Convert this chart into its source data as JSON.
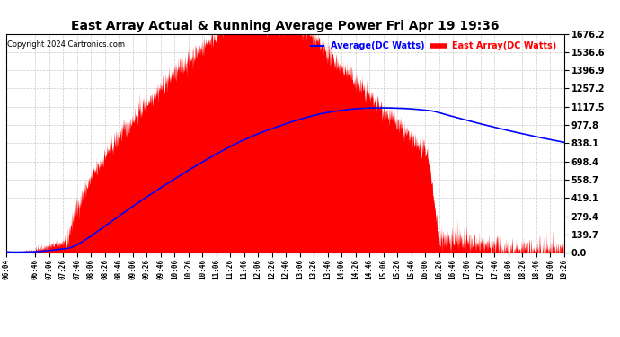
{
  "title": "East Array Actual & Running Average Power Fri Apr 19 19:36",
  "copyright": "Copyright 2024 Cartronics.com",
  "legend_avg": "Average(DC Watts)",
  "legend_east": "East Array(DC Watts)",
  "bg_color": "#ffffff",
  "plot_bg_color": "#ffffff",
  "grid_color": "#bbbbbb",
  "fill_color": "#ff0000",
  "avg_line_color": "#0000ff",
  "east_line_color": "#ff0000",
  "title_color": "#000000",
  "copyright_color": "#000000",
  "ymax": 1676.2,
  "yticks": [
    0.0,
    139.7,
    279.4,
    419.1,
    558.7,
    698.4,
    838.1,
    977.8,
    1117.5,
    1257.2,
    1396.9,
    1536.6,
    1676.2
  ],
  "time_start_minutes": 364,
  "time_end_minutes": 1166,
  "x_tick_labels": [
    "06:04",
    "06:46",
    "07:06",
    "07:26",
    "07:46",
    "08:06",
    "08:26",
    "08:46",
    "09:06",
    "09:26",
    "09:46",
    "10:06",
    "10:26",
    "10:46",
    "11:06",
    "11:26",
    "11:46",
    "12:06",
    "12:26",
    "12:46",
    "13:06",
    "13:26",
    "13:46",
    "14:06",
    "14:26",
    "14:46",
    "15:06",
    "15:26",
    "15:46",
    "16:06",
    "16:26",
    "16:46",
    "17:06",
    "17:26",
    "17:46",
    "18:06",
    "18:26",
    "18:46",
    "19:06",
    "19:26"
  ],
  "x_tick_minutes": [
    364,
    406,
    426,
    446,
    466,
    486,
    506,
    526,
    546,
    566,
    586,
    606,
    626,
    646,
    666,
    686,
    706,
    726,
    746,
    766,
    786,
    806,
    826,
    846,
    866,
    886,
    906,
    926,
    946,
    966,
    986,
    1006,
    1026,
    1046,
    1066,
    1086,
    1106,
    1126,
    1146,
    1166
  ],
  "peak_start": 460,
  "peak_end": 790,
  "cliff_time": 970,
  "peak_value": 1676.2,
  "avg_peak_value": 1117.5,
  "avg_peak_time": 920,
  "avg_end_value": 838.1
}
